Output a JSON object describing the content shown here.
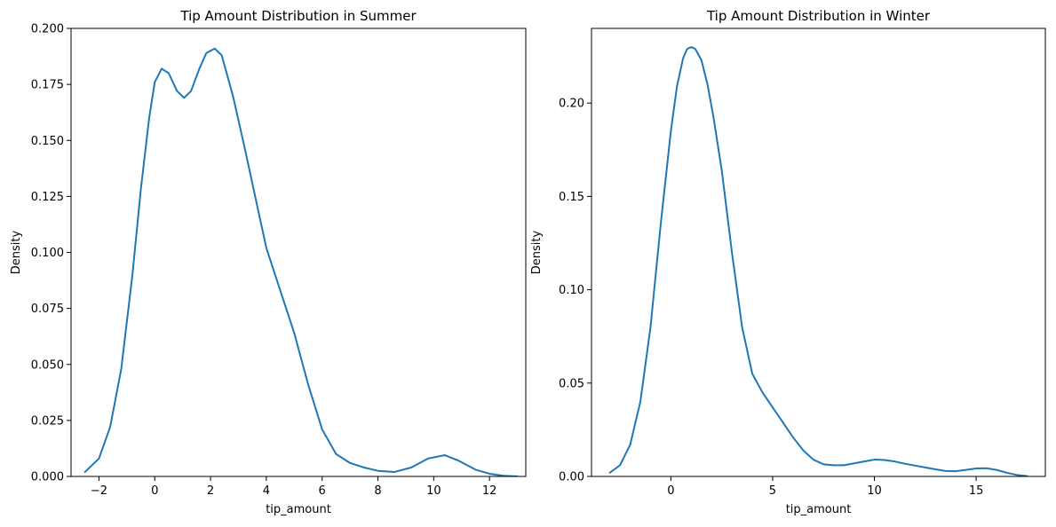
{
  "chart_data": [
    {
      "type": "line",
      "title": "Tip Amount Distribution in Summer",
      "xlabel": "tip_amount",
      "ylabel": "Density",
      "xlim": [
        -3.0,
        13.3
      ],
      "ylim": [
        0,
        0.2
      ],
      "xticks": [
        -2,
        0,
        2,
        4,
        6,
        8,
        10,
        12
      ],
      "xtick_labels": [
        "−2",
        "0",
        "2",
        "4",
        "6",
        "8",
        "10",
        "12"
      ],
      "yticks": [
        0,
        0.025,
        0.05,
        0.075,
        0.1,
        0.125,
        0.15,
        0.175,
        0.2
      ],
      "ytick_labels": [
        "0.000",
        "0.025",
        "0.050",
        "0.075",
        "0.100",
        "0.125",
        "0.150",
        "0.175",
        "0.200"
      ],
      "grid": false,
      "line_color": "#1f77b4",
      "series": [
        {
          "x": [
            -2.5,
            -2.0,
            -1.6,
            -1.2,
            -0.8,
            -0.5,
            -0.2,
            0.0,
            0.25,
            0.5,
            0.8,
            1.05,
            1.3,
            1.6,
            1.85,
            2.15,
            2.4,
            2.8,
            3.2,
            3.6,
            4.0,
            4.5,
            5.0,
            5.5,
            6.0,
            6.5,
            7.0,
            7.5,
            8.0,
            8.6,
            9.2,
            9.8,
            10.4,
            10.9,
            11.5,
            12.0,
            12.5,
            13.0
          ],
          "y": [
            0.002,
            0.008,
            0.022,
            0.048,
            0.09,
            0.128,
            0.16,
            0.176,
            0.182,
            0.18,
            0.172,
            0.169,
            0.172,
            0.182,
            0.189,
            0.191,
            0.188,
            0.17,
            0.148,
            0.125,
            0.102,
            0.083,
            0.064,
            0.041,
            0.021,
            0.01,
            0.006,
            0.004,
            0.0025,
            0.002,
            0.004,
            0.008,
            0.0095,
            0.007,
            0.003,
            0.0012,
            0.0003,
            0.0
          ]
        }
      ]
    },
    {
      "type": "line",
      "title": "Tip Amount Distribution in Winter",
      "xlabel": "tip_amount",
      "ylabel": "Density",
      "xlim": [
        -3.9,
        18.4
      ],
      "ylim": [
        0,
        0.24
      ],
      "xticks": [
        0,
        5,
        10,
        15
      ],
      "xtick_labels": [
        "0",
        "5",
        "10",
        "15"
      ],
      "yticks": [
        0,
        0.05,
        0.1,
        0.15,
        0.2
      ],
      "ytick_labels": [
        "0.00",
        "0.05",
        "0.10",
        "0.15",
        "0.20"
      ],
      "grid": false,
      "line_color": "#1f77b4",
      "series": [
        {
          "x": [
            -3.0,
            -2.5,
            -2.0,
            -1.5,
            -1.0,
            -0.5,
            0.0,
            0.3,
            0.6,
            0.8,
            1.0,
            1.2,
            1.5,
            1.8,
            2.1,
            2.5,
            3.0,
            3.5,
            4.0,
            4.5,
            5.0,
            5.5,
            6.0,
            6.5,
            7.0,
            7.5,
            8.0,
            8.5,
            9.0,
            9.5,
            10.0,
            10.5,
            11.0,
            11.5,
            12.0,
            12.5,
            13.0,
            13.5,
            14.0,
            14.5,
            15.0,
            15.5,
            16.0,
            16.5,
            17.0,
            17.5
          ],
          "y": [
            0.002,
            0.006,
            0.017,
            0.04,
            0.08,
            0.135,
            0.185,
            0.209,
            0.224,
            0.229,
            0.23,
            0.229,
            0.223,
            0.21,
            0.192,
            0.164,
            0.12,
            0.08,
            0.055,
            0.045,
            0.037,
            0.029,
            0.021,
            0.014,
            0.009,
            0.0065,
            0.006,
            0.006,
            0.007,
            0.008,
            0.009,
            0.0088,
            0.008,
            0.0068,
            0.0058,
            0.0048,
            0.0038,
            0.0029,
            0.0028,
            0.0035,
            0.0043,
            0.0044,
            0.0035,
            0.002,
            0.0008,
            0.0002
          ]
        }
      ]
    }
  ]
}
